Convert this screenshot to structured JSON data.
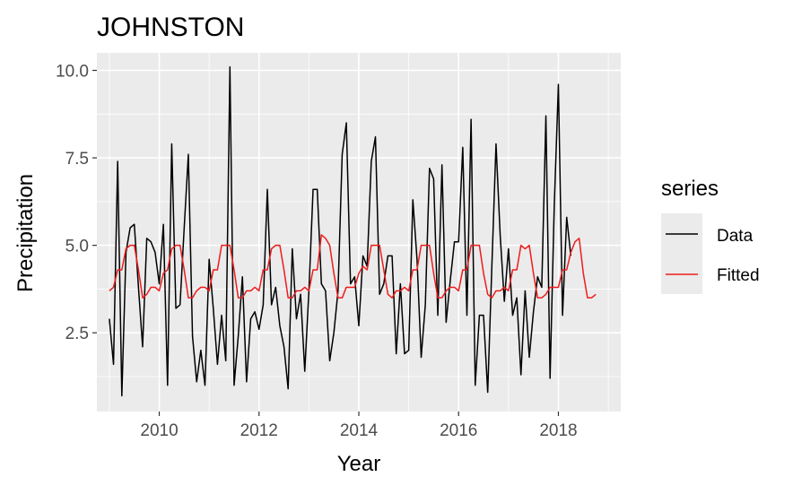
{
  "chart_data": {
    "type": "line",
    "title": "JOHNSTON",
    "xlabel": "Year",
    "ylabel": "Precipitation",
    "xlim": [
      2008.75,
      2019.25
    ],
    "ylim": [
      0.25,
      10.5
    ],
    "x_ticks": [
      2010,
      2012,
      2014,
      2016,
      2018
    ],
    "x_tick_labels": [
      "2010",
      "2012",
      "2014",
      "2016",
      "2018"
    ],
    "y_ticks": [
      2.5,
      5.0,
      7.5,
      10.0
    ],
    "y_tick_labels": [
      "2.5",
      "5.0",
      "7.5",
      "10.0"
    ],
    "grid": true,
    "legend_title": "series",
    "legend_position": "right",
    "series": [
      {
        "name": "Data",
        "color": "#000000",
        "x_start": 2009.0,
        "x_step": 0.08333,
        "values": [
          2.9,
          1.6,
          7.4,
          0.7,
          4.8,
          5.5,
          5.6,
          3.8,
          2.1,
          5.2,
          5.1,
          4.8,
          3.9,
          5.6,
          1.0,
          7.9,
          3.2,
          3.3,
          5.5,
          7.6,
          2.4,
          1.1,
          2.0,
          1.0,
          4.6,
          3.2,
          1.6,
          3.0,
          1.7,
          10.1,
          1.0,
          2.4,
          4.1,
          1.1,
          2.9,
          3.1,
          2.6,
          3.3,
          6.6,
          3.3,
          3.8,
          2.7,
          2.1,
          0.9,
          4.9,
          2.9,
          3.6,
          1.4,
          3.7,
          6.6,
          6.6,
          3.9,
          3.7,
          1.7,
          2.5,
          3.7,
          7.6,
          8.5,
          3.9,
          4.1,
          2.7,
          4.7,
          4.4,
          7.4,
          8.1,
          3.6,
          3.9,
          4.7,
          4.7,
          1.9,
          3.9,
          1.9,
          2.0,
          6.3,
          4.6,
          1.8,
          3.3,
          7.2,
          6.9,
          3.0,
          7.3,
          2.8,
          4.0,
          5.1,
          5.1,
          7.8,
          3.0,
          8.6,
          1.0,
          3.0,
          3.0,
          0.8,
          4.4,
          7.9,
          5.3,
          3.4,
          4.9,
          3.0,
          3.5,
          1.3,
          3.7,
          1.8,
          3.1,
          4.1,
          3.8,
          8.7,
          1.2,
          6.1,
          9.6,
          3.0,
          5.8,
          4.7
        ]
      },
      {
        "name": "Fitted",
        "color": "#ee1c1c",
        "x_start": 2009.0,
        "x_step": 0.08333,
        "values": [
          3.7,
          3.8,
          4.3,
          4.3,
          4.9,
          5.0,
          5.0,
          4.3,
          3.5,
          3.6,
          3.8,
          3.8,
          3.7,
          4.2,
          4.3,
          4.9,
          5.0,
          5.0,
          4.3,
          3.5,
          3.5,
          3.7,
          3.8,
          3.8,
          3.7,
          4.3,
          4.3,
          5.0,
          5.0,
          5.0,
          4.3,
          3.5,
          3.5,
          3.7,
          3.7,
          3.8,
          3.7,
          4.3,
          4.3,
          4.9,
          5.0,
          5.0,
          4.3,
          3.5,
          3.5,
          3.7,
          3.7,
          3.8,
          3.7,
          4.3,
          4.3,
          5.3,
          5.2,
          5.0,
          4.2,
          3.5,
          3.5,
          3.8,
          3.8,
          3.8,
          4.2,
          4.4,
          4.3,
          5.0,
          5.0,
          5.0,
          4.3,
          3.6,
          3.5,
          3.7,
          3.7,
          3.8,
          3.7,
          4.3,
          4.3,
          5.0,
          5.0,
          5.0,
          4.2,
          3.5,
          3.5,
          3.7,
          3.8,
          3.8,
          3.7,
          4.3,
          4.3,
          5.0,
          5.0,
          5.0,
          4.2,
          3.6,
          3.5,
          3.7,
          3.7,
          3.8,
          3.7,
          4.3,
          4.3,
          5.0,
          4.9,
          5.0,
          4.2,
          3.5,
          3.5,
          3.6,
          3.8,
          3.8,
          3.8,
          4.3,
          4.3,
          4.8,
          5.1,
          5.2,
          4.2,
          3.5,
          3.5,
          3.6
        ]
      }
    ]
  }
}
